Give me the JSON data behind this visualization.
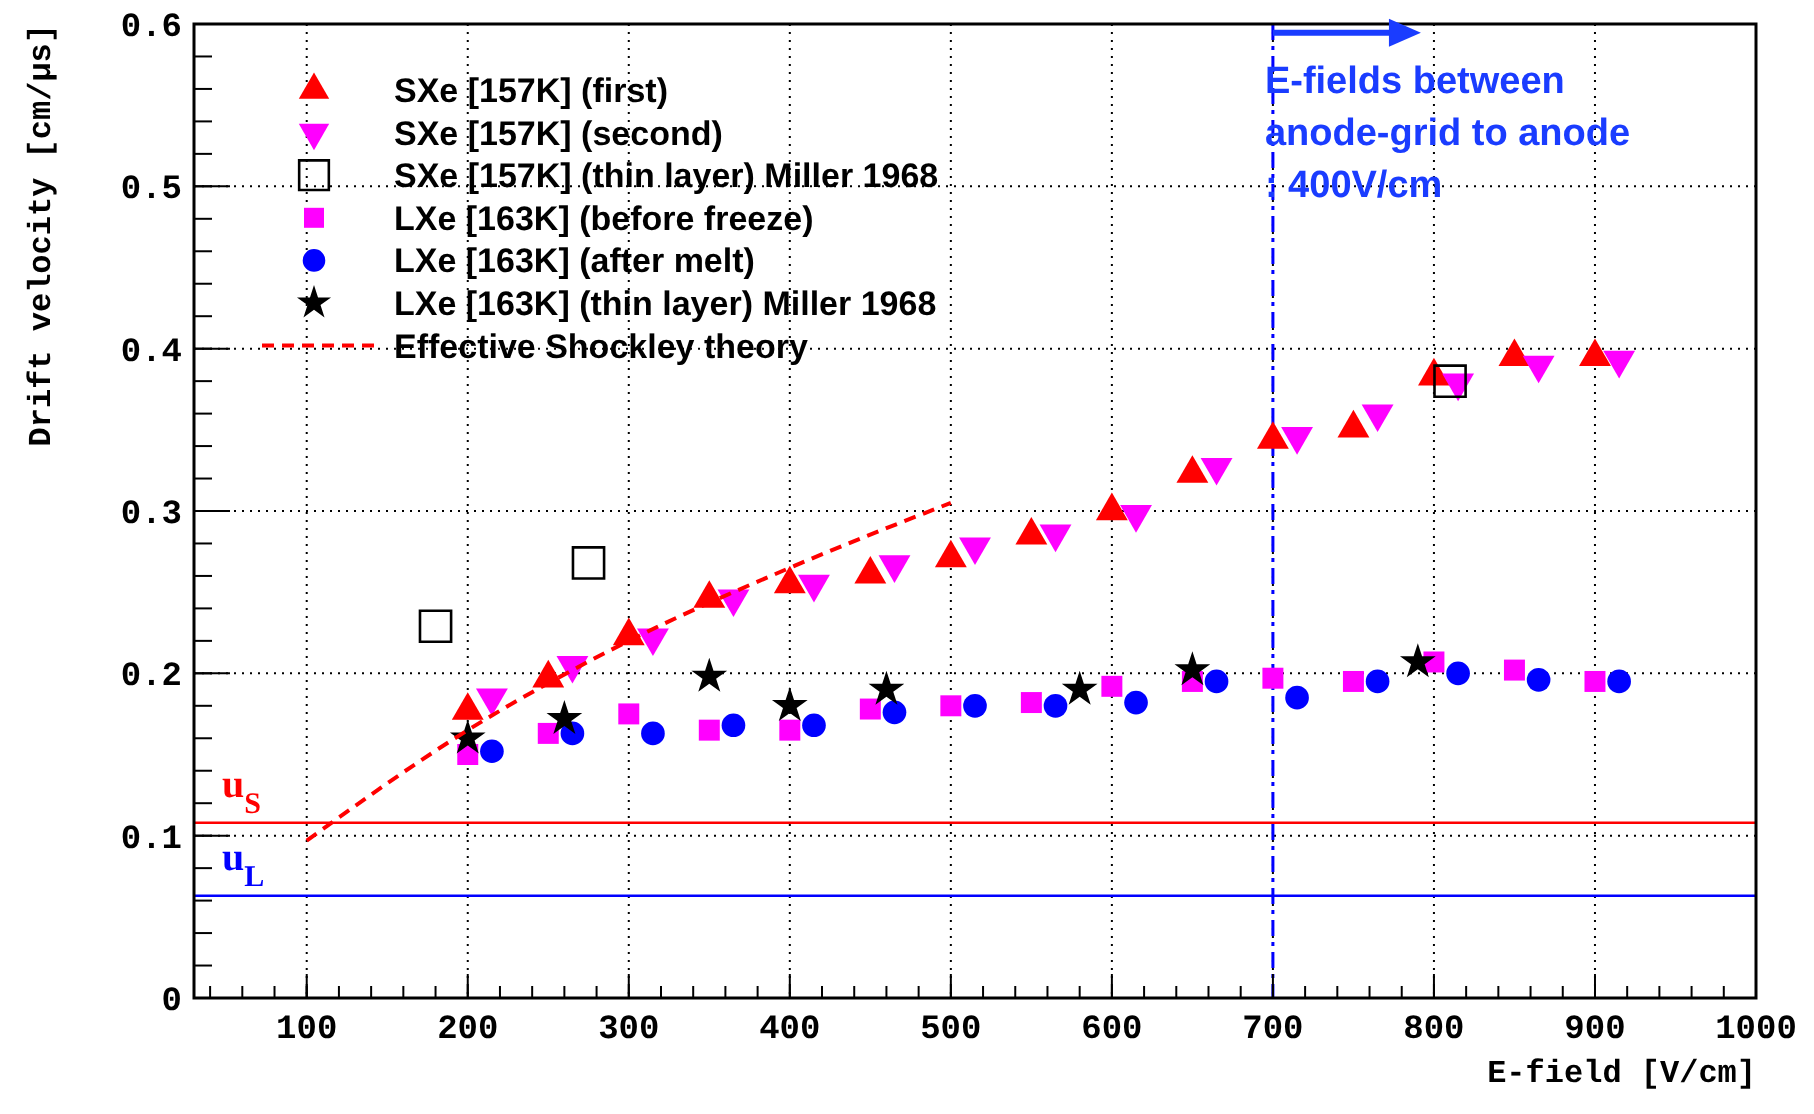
{
  "chart_data": {
    "type": "scatter",
    "xlabel": "E-field [V/cm]",
    "ylabel": "Drift velocity [cm/μs]",
    "xlim": [
      30,
      1000
    ],
    "ylim": [
      0,
      0.6
    ],
    "xticks": [
      100,
      200,
      300,
      400,
      500,
      600,
      700,
      800,
      900,
      1000
    ],
    "yticks": [
      0,
      0.1,
      0.2,
      0.3,
      0.4,
      0.5,
      0.6
    ],
    "grid": true,
    "legend": "top left",
    "series": [
      {
        "name": "SXe [157K] (first)",
        "color": "#ff0000",
        "marker": "triangle",
        "x": [
          200,
          250,
          300,
          350,
          400,
          450,
          500,
          550,
          600,
          650,
          700,
          750,
          800,
          850,
          900
        ],
        "values": [
          0.177,
          0.197,
          0.223,
          0.246,
          0.255,
          0.261,
          0.271,
          0.285,
          0.3,
          0.323,
          0.344,
          0.351,
          0.383,
          0.395,
          0.395
        ]
      },
      {
        "name": "SXe [157K] (second)",
        "color": "#ff00ff",
        "marker": "triangle-down",
        "x": [
          215,
          265,
          315,
          365,
          415,
          465,
          515,
          565,
          615,
          665,
          715,
          765,
          815,
          865,
          915
        ],
        "values": [
          0.185,
          0.205,
          0.222,
          0.246,
          0.255,
          0.267,
          0.278,
          0.286,
          0.298,
          0.327,
          0.346,
          0.36,
          0.379,
          0.39,
          0.393
        ]
      },
      {
        "name": "SXe [157K] (thin layer) Miller 1968",
        "color": "#000000",
        "marker": "square-open",
        "x": [
          180,
          275,
          810
        ],
        "values": [
          0.229,
          0.268,
          0.38
        ]
      },
      {
        "name": "LXe [163K] (before freeze)",
        "color": "#ff00ff",
        "marker": "square",
        "x": [
          200,
          250,
          300,
          350,
          400,
          450,
          500,
          550,
          600,
          650,
          700,
          750,
          800,
          850,
          900
        ],
        "values": [
          0.15,
          0.163,
          0.175,
          0.165,
          0.165,
          0.178,
          0.18,
          0.182,
          0.192,
          0.195,
          0.197,
          0.195,
          0.207,
          0.202,
          0.195
        ]
      },
      {
        "name": "LXe [163K] (after melt)",
        "color": "#0000ff",
        "marker": "circle",
        "x": [
          215,
          265,
          315,
          365,
          415,
          465,
          515,
          565,
          615,
          665,
          715,
          765,
          815,
          865,
          915
        ],
        "values": [
          0.152,
          0.163,
          0.163,
          0.168,
          0.168,
          0.176,
          0.18,
          0.18,
          0.182,
          0.195,
          0.185,
          0.195,
          0.2,
          0.196,
          0.195
        ]
      },
      {
        "name": "LXe [163K] (thin layer) Miller 1968",
        "color": "#000000",
        "marker": "star",
        "x": [
          200,
          260,
          350,
          400,
          460,
          580,
          650,
          790
        ],
        "values": [
          0.16,
          0.172,
          0.198,
          0.18,
          0.19,
          0.19,
          0.202,
          0.207
        ]
      },
      {
        "name": "Effective Shockley theory",
        "type": "line",
        "color": "#ff0000",
        "line_style": "dashed",
        "marker": "none",
        "x": [
          100,
          200,
          300,
          400,
          500
        ],
        "values": [
          0.097,
          0.165,
          0.22,
          0.265,
          0.305
        ]
      }
    ],
    "ref_lines": [
      {
        "axis": "y",
        "value": 0.108,
        "label": "u$_{S}$",
        "color": "#ff0000",
        "line_style": "solid"
      },
      {
        "axis": "y",
        "value": 0.063,
        "label": "u$_{L}$",
        "color": "#0000ff",
        "line_style": "solid"
      },
      {
        "axis": "x",
        "value": 700,
        "label": null,
        "color": "#0000ff",
        "line_style": "dashdot"
      }
    ],
    "annotations": [
      {
        "text": "E-fields between\nanode-grid to anode\n: 400V/cm",
        "x": 700,
        "y": 0.565
      }
    ]
  }
}
